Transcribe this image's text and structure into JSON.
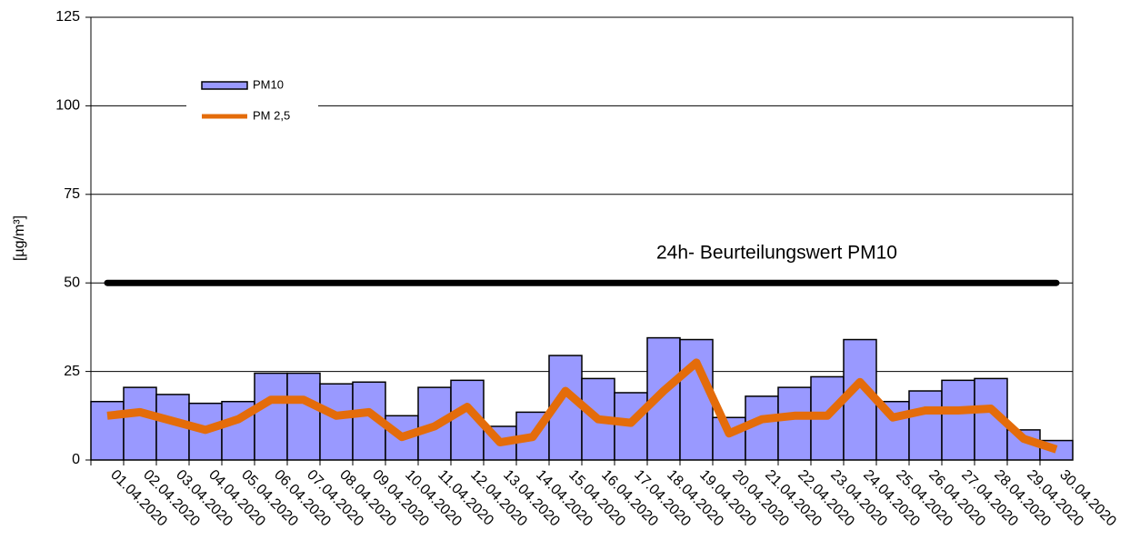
{
  "chart_data": {
    "type": "bar",
    "ylabel": "[µg/m³]",
    "categories": [
      "01.04.2020",
      "02.04.2020",
      "03.04.2020",
      "04.04.2020",
      "05.04.2020",
      "06.04.2020",
      "07.04.2020",
      "08.04.2020",
      "09.04.2020",
      "10.04.2020",
      "11.04.2020",
      "12.04.2020",
      "13.04.2020",
      "14.04.2020",
      "15.04.2020",
      "16.04.2020",
      "17.04.2020",
      "18.04.2020",
      "19.04.2020",
      "20.04.2020",
      "21.04.2020",
      "22.04.2020",
      "23.04.2020",
      "24.04.2020",
      "25.04.2020",
      "26.04.2020",
      "27.04.2020",
      "28.04.2020",
      "29.04.2020",
      "30.04.2020"
    ],
    "series": [
      {
        "name": "PM10",
        "type": "bar",
        "color": "#9999ff",
        "values": [
          16.5,
          20.5,
          18.5,
          16,
          16.5,
          24.5,
          24.5,
          21.5,
          22,
          12.5,
          20.5,
          22.5,
          9.5,
          13.5,
          29.5,
          23,
          19,
          34.5,
          34,
          12,
          18,
          20.5,
          23.5,
          34,
          16.5,
          19.5,
          22.5,
          23,
          8.5,
          5.5
        ]
      },
      {
        "name": "PM 2,5",
        "type": "line",
        "color": "#e46c0a",
        "values": [
          12.5,
          13.5,
          11,
          8.5,
          11.5,
          17,
          17,
          12.5,
          13.5,
          6.5,
          9.5,
          15,
          5,
          6.5,
          19.5,
          11.5,
          10.5,
          19.5,
          27.5,
          7.5,
          11.5,
          12.5,
          12.5,
          22,
          12,
          14,
          14,
          14.5,
          6,
          3
        ]
      }
    ],
    "threshold": {
      "value": 50,
      "label": "24h- Beurteilungswert PM10",
      "color": "#000000"
    },
    "ylim": [
      0,
      125
    ],
    "yticks": [
      0,
      25,
      50,
      75,
      100,
      125
    ],
    "grid": true,
    "legend": "upper left"
  }
}
